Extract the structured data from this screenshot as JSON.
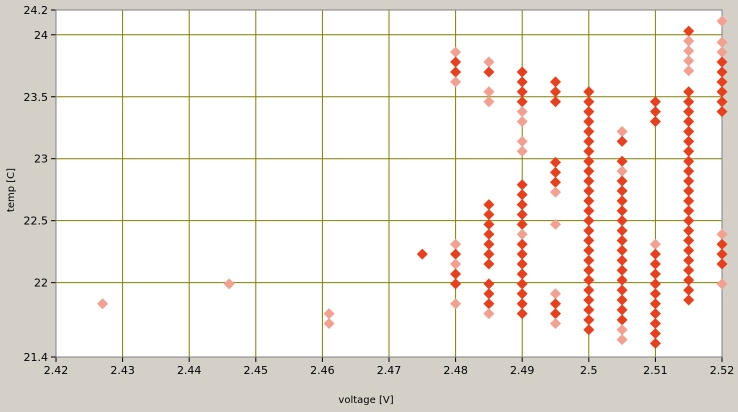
{
  "chart_data": {
    "type": "scatter",
    "xlabel": "voltage [V]",
    "ylabel": "temp [C]",
    "xlim": [
      2.42,
      2.52
    ],
    "ylim": [
      21.4,
      24.2
    ],
    "xticks": [
      2.42,
      2.43,
      2.44,
      2.45,
      2.46,
      2.47,
      2.48,
      2.49,
      2.5,
      2.51,
      2.52
    ],
    "yticks": [
      21.4,
      22,
      22.5,
      23,
      23.5,
      24,
      24.2
    ],
    "xtick_labels": [
      "2.42",
      "2.43",
      "2.44",
      "2.45",
      "2.46",
      "2.47",
      "2.48",
      "2.49",
      "2.5",
      "2.51",
      "2.52"
    ],
    "ytick_labels": [
      "21.4",
      "22",
      "22.5",
      "23",
      "23.5",
      "24",
      "24.2"
    ],
    "grid": true,
    "colors": {
      "background": "#d4d0c8",
      "plot_area": "#ffffff",
      "grid": "#808000",
      "marker_dark": "#e8401c",
      "marker_light": "#f4a090"
    },
    "series": [
      {
        "points": [
          [
            2.427,
            21.83,
            0
          ],
          [
            2.446,
            21.99,
            0
          ],
          [
            2.461,
            21.75,
            0
          ],
          [
            2.461,
            21.67,
            0
          ],
          [
            2.475,
            22.23,
            1
          ],
          [
            2.48,
            23.86,
            0
          ],
          [
            2.48,
            23.78,
            1
          ],
          [
            2.48,
            23.7,
            1
          ],
          [
            2.48,
            23.62,
            0
          ],
          [
            2.48,
            22.31,
            0
          ],
          [
            2.48,
            22.23,
            1
          ],
          [
            2.48,
            22.15,
            0
          ],
          [
            2.48,
            22.07,
            1
          ],
          [
            2.48,
            21.99,
            1
          ],
          [
            2.48,
            21.83,
            0
          ],
          [
            2.485,
            23.78,
            0
          ],
          [
            2.485,
            23.7,
            1
          ],
          [
            2.485,
            23.54,
            0
          ],
          [
            2.485,
            23.46,
            0
          ],
          [
            2.485,
            22.63,
            1
          ],
          [
            2.485,
            22.55,
            1
          ],
          [
            2.485,
            22.47,
            1
          ],
          [
            2.485,
            22.39,
            1
          ],
          [
            2.485,
            22.31,
            1
          ],
          [
            2.485,
            22.23,
            1
          ],
          [
            2.485,
            22.15,
            1
          ],
          [
            2.485,
            21.99,
            1
          ],
          [
            2.485,
            21.91,
            1
          ],
          [
            2.485,
            21.83,
            1
          ],
          [
            2.485,
            21.75,
            0
          ],
          [
            2.49,
            23.7,
            1
          ],
          [
            2.49,
            23.62,
            1
          ],
          [
            2.49,
            23.54,
            1
          ],
          [
            2.49,
            23.46,
            1
          ],
          [
            2.49,
            23.38,
            0
          ],
          [
            2.49,
            23.3,
            0
          ],
          [
            2.49,
            23.14,
            0
          ],
          [
            2.49,
            23.06,
            0
          ],
          [
            2.49,
            22.79,
            1
          ],
          [
            2.49,
            22.71,
            1
          ],
          [
            2.49,
            22.63,
            1
          ],
          [
            2.49,
            22.55,
            1
          ],
          [
            2.49,
            22.47,
            1
          ],
          [
            2.49,
            22.39,
            0
          ],
          [
            2.49,
            22.31,
            1
          ],
          [
            2.49,
            22.23,
            1
          ],
          [
            2.49,
            22.15,
            1
          ],
          [
            2.49,
            22.07,
            1
          ],
          [
            2.49,
            21.99,
            1
          ],
          [
            2.49,
            21.91,
            1
          ],
          [
            2.49,
            21.83,
            1
          ],
          [
            2.49,
            21.75,
            1
          ],
          [
            2.495,
            23.62,
            1
          ],
          [
            2.495,
            23.54,
            1
          ],
          [
            2.495,
            23.46,
            1
          ],
          [
            2.495,
            22.97,
            1
          ],
          [
            2.495,
            22.89,
            1
          ],
          [
            2.495,
            22.81,
            1
          ],
          [
            2.495,
            22.73,
            0
          ],
          [
            2.495,
            22.47,
            0
          ],
          [
            2.495,
            21.91,
            0
          ],
          [
            2.495,
            21.83,
            1
          ],
          [
            2.495,
            21.75,
            1
          ],
          [
            2.495,
            21.67,
            0
          ],
          [
            2.5,
            23.54,
            1
          ],
          [
            2.5,
            23.46,
            1
          ],
          [
            2.5,
            23.38,
            1
          ],
          [
            2.5,
            23.3,
            1
          ],
          [
            2.5,
            23.22,
            1
          ],
          [
            2.5,
            23.14,
            1
          ],
          [
            2.5,
            23.06,
            1
          ],
          [
            2.5,
            22.98,
            1
          ],
          [
            2.5,
            22.9,
            1
          ],
          [
            2.5,
            22.82,
            1
          ],
          [
            2.5,
            22.74,
            1
          ],
          [
            2.5,
            22.66,
            1
          ],
          [
            2.5,
            22.58,
            1
          ],
          [
            2.5,
            22.5,
            1
          ],
          [
            2.5,
            22.42,
            1
          ],
          [
            2.5,
            22.34,
            1
          ],
          [
            2.5,
            22.26,
            1
          ],
          [
            2.5,
            22.18,
            1
          ],
          [
            2.5,
            22.1,
            1
          ],
          [
            2.5,
            22.02,
            1
          ],
          [
            2.5,
            21.94,
            1
          ],
          [
            2.5,
            21.86,
            1
          ],
          [
            2.5,
            21.78,
            1
          ],
          [
            2.5,
            21.7,
            1
          ],
          [
            2.5,
            21.62,
            1
          ],
          [
            2.505,
            23.22,
            0
          ],
          [
            2.505,
            23.14,
            1
          ],
          [
            2.505,
            22.98,
            1
          ],
          [
            2.505,
            22.9,
            0
          ],
          [
            2.505,
            22.82,
            1
          ],
          [
            2.505,
            22.74,
            1
          ],
          [
            2.505,
            22.66,
            1
          ],
          [
            2.505,
            22.58,
            1
          ],
          [
            2.505,
            22.5,
            1
          ],
          [
            2.505,
            22.42,
            1
          ],
          [
            2.505,
            22.34,
            1
          ],
          [
            2.505,
            22.26,
            1
          ],
          [
            2.505,
            22.18,
            1
          ],
          [
            2.505,
            22.1,
            1
          ],
          [
            2.505,
            22.02,
            1
          ],
          [
            2.505,
            21.94,
            1
          ],
          [
            2.505,
            21.86,
            1
          ],
          [
            2.505,
            21.78,
            1
          ],
          [
            2.505,
            21.7,
            1
          ],
          [
            2.505,
            21.62,
            0
          ],
          [
            2.505,
            21.54,
            0
          ],
          [
            2.51,
            23.46,
            1
          ],
          [
            2.51,
            23.38,
            1
          ],
          [
            2.51,
            23.3,
            1
          ],
          [
            2.51,
            22.31,
            0
          ],
          [
            2.51,
            22.23,
            1
          ],
          [
            2.51,
            22.15,
            1
          ],
          [
            2.51,
            22.07,
            1
          ],
          [
            2.51,
            21.99,
            1
          ],
          [
            2.51,
            21.91,
            1
          ],
          [
            2.51,
            21.83,
            1
          ],
          [
            2.51,
            21.75,
            1
          ],
          [
            2.51,
            21.67,
            1
          ],
          [
            2.51,
            21.59,
            1
          ],
          [
            2.51,
            21.51,
            1
          ],
          [
            2.515,
            24.03,
            1
          ],
          [
            2.515,
            23.95,
            0
          ],
          [
            2.515,
            23.87,
            0
          ],
          [
            2.515,
            23.79,
            0
          ],
          [
            2.515,
            23.71,
            0
          ],
          [
            2.515,
            23.54,
            1
          ],
          [
            2.515,
            23.46,
            1
          ],
          [
            2.515,
            23.38,
            1
          ],
          [
            2.515,
            23.3,
            1
          ],
          [
            2.515,
            23.22,
            1
          ],
          [
            2.515,
            23.14,
            1
          ],
          [
            2.515,
            23.06,
            1
          ],
          [
            2.515,
            22.98,
            1
          ],
          [
            2.515,
            22.9,
            1
          ],
          [
            2.515,
            22.82,
            1
          ],
          [
            2.515,
            22.74,
            1
          ],
          [
            2.515,
            22.66,
            1
          ],
          [
            2.515,
            22.58,
            1
          ],
          [
            2.515,
            22.5,
            1
          ],
          [
            2.515,
            22.42,
            1
          ],
          [
            2.515,
            22.34,
            1
          ],
          [
            2.515,
            22.26,
            1
          ],
          [
            2.515,
            22.18,
            1
          ],
          [
            2.515,
            22.1,
            1
          ],
          [
            2.515,
            22.02,
            1
          ],
          [
            2.515,
            21.94,
            1
          ],
          [
            2.515,
            21.86,
            1
          ],
          [
            2.52,
            24.11,
            0
          ],
          [
            2.52,
            23.94,
            0
          ],
          [
            2.52,
            23.86,
            0
          ],
          [
            2.52,
            23.78,
            1
          ],
          [
            2.52,
            23.7,
            1
          ],
          [
            2.52,
            23.62,
            1
          ],
          [
            2.52,
            23.54,
            1
          ],
          [
            2.52,
            23.46,
            1
          ],
          [
            2.52,
            23.38,
            1
          ],
          [
            2.52,
            22.39,
            0
          ],
          [
            2.52,
            22.31,
            1
          ],
          [
            2.52,
            22.23,
            1
          ],
          [
            2.52,
            22.15,
            1
          ],
          [
            2.52,
            21.99,
            0
          ]
        ]
      }
    ]
  }
}
